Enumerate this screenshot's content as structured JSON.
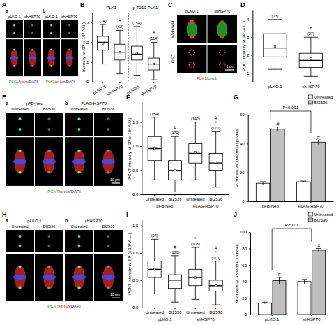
{
  "images": [
    {
      "panel": "A",
      "subpanels": [
        {
          "label": "a",
          "columns": [
            "pLKO.1",
            "shHSP70"
          ],
          "caption": [
            {
              "text": "PLK1",
              "color": "#1a9e1a"
            },
            {
              "text": "/",
              "color": "#000000"
            },
            {
              "text": "γ-tub",
              "color": "#d91a1a"
            },
            {
              "text": "/",
              "color": "#000000"
            },
            {
              "text": "DAPI",
              "color": "#1a2fd9"
            }
          ]
        },
        {
          "label": "b",
          "columns": [
            "pLKO.1",
            "shHSP70"
          ],
          "caption": [
            {
              "text": "PLK1",
              "color": "#1a9e1a"
            },
            {
              "text": "/",
              "color": "#000000"
            },
            {
              "text": "α-tub",
              "color": "#d91a1a"
            },
            {
              "text": "/",
              "color": "#000000"
            },
            {
              "text": "DAPI",
              "color": "#1a2fd9"
            }
          ]
        }
      ]
    },
    {
      "panel": "C",
      "columns": [
        "pLKO.1",
        "shHSP70"
      ],
      "rows": [
        "Wide-field",
        "GSD"
      ],
      "caption": [
        {
          "text": "PLK1",
          "color": "#d91a1a"
        },
        {
          "text": "/",
          "color": "#000000"
        },
        {
          "text": "α-tub",
          "color": "#1a9e1a"
        }
      ],
      "scale_bar": "1 μm"
    },
    {
      "panel": "E",
      "subpanels": [
        {
          "label": "a",
          "title": "pFB-Neo",
          "columns": [
            "Untreated",
            "BI2536"
          ]
        },
        {
          "label": "b",
          "title": "FLAG-HSP70",
          "columns": [
            "Untreated",
            "BI2536"
          ]
        }
      ],
      "caption": [
        {
          "text": "PCNT",
          "color": "#1a9e1a"
        },
        {
          "text": "/",
          "color": "#000000"
        },
        {
          "text": "α-tub",
          "color": "#d91a1a"
        },
        {
          "text": "/",
          "color": "#000000"
        },
        {
          "text": "DAPI",
          "color": "#1a2fd9"
        }
      ],
      "scale_bar": "10 μm"
    },
    {
      "panel": "H",
      "subpanels": [
        {
          "label": "a",
          "title": "pLKO.1",
          "columns": [
            "Untreated",
            "BI2536"
          ]
        },
        {
          "label": "b",
          "title": "shHSP70",
          "columns": [
            "Untreated",
            "BI2536"
          ]
        }
      ],
      "caption": [
        {
          "text": "PCNT",
          "color": "#1a9e1a"
        },
        {
          "text": "/",
          "color": "#000000"
        },
        {
          "text": "α-tub",
          "color": "#d91a1a"
        },
        {
          "text": "/",
          "color": "#000000"
        },
        {
          "text": "DAPI",
          "color": "#1a2fd9"
        }
      ],
      "scale_bar": "10 μm"
    }
  ],
  "chart_data": [
    {
      "type": "box",
      "panel": "B",
      "y_label": "Intensity at SP (x 10⁴ A.U.)",
      "ylim": [
        0,
        3.5
      ],
      "yticks": [
        0,
        1,
        2,
        3
      ],
      "groups": [
        {
          "title": "PLK1",
          "boxes": [
            {
              "category": "pLKO.1",
              "low": 0.9,
              "q1": 1.6,
              "median": 2.0,
              "q3": 2.3,
              "high": 2.9,
              "mean": 1.95,
              "n_label": "(74)"
            },
            {
              "category": "shHSP70",
              "low": 0.4,
              "q1": 1.1,
              "median": 1.5,
              "q3": 1.9,
              "high": 2.6,
              "mean": 1.5,
              "n_label": "(62)",
              "marks": [
                "*"
              ]
            }
          ]
        },
        {
          "title": "p-T210-PLK1",
          "boxes": [
            {
              "category": "pLKO.1",
              "low": 0.3,
              "q1": 1.1,
              "median": 1.4,
              "q3": 1.8,
              "high": 2.8,
              "mean": 1.45,
              "n_label": "(154)"
            },
            {
              "category": "shHSP70",
              "low": 0.1,
              "q1": 0.6,
              "median": 0.9,
              "q3": 1.2,
              "high": 2.0,
              "mean": 0.9,
              "n_label": "(114)",
              "marks": [
                "*"
              ]
            }
          ]
        }
      ]
    },
    {
      "type": "box",
      "panel": "D",
      "y_label": "PLK1 intensity at SP (A.U.)",
      "ylim": [
        0.5,
        4.5
      ],
      "yticks": [
        1,
        2,
        3,
        4
      ],
      "groups": [
        {
          "boxes": [
            {
              "category": "pLKO.1",
              "low": 1.2,
              "q1": 1.9,
              "median": 2.4,
              "q3": 3.2,
              "high": 4.0,
              "mean": 2.5,
              "n_label": "(23)"
            },
            {
              "category": "shHSP70",
              "low": 0.8,
              "q1": 1.3,
              "median": 1.7,
              "q3": 2.1,
              "high": 3.0,
              "mean": 1.8,
              "n_label": "(27)",
              "marks": [
                "*"
              ]
            }
          ]
        }
      ]
    },
    {
      "type": "box",
      "panel": "F",
      "y_label": "PCNT intensity at SP (x 10⁴ A.U.)",
      "ylim": [
        0,
        1.9
      ],
      "yticks": [
        {
          "value": 0,
          "label": "0.0"
        },
        0.5,
        {
          "value": 1,
          "label": "1.0"
        },
        1.5
      ],
      "groups": [
        {
          "label": "pFB-Neo",
          "boxes": [
            {
              "category": "Untreated",
              "low": 0.3,
              "q1": 0.7,
              "median": 0.95,
              "q3": 1.2,
              "high": 1.6,
              "mean": 0.95,
              "n_label": "(154)"
            },
            {
              "category": "BI2536",
              "low": 0.05,
              "q1": 0.3,
              "median": 0.5,
              "q3": 0.7,
              "high": 1.2,
              "mean": 0.5,
              "n_label": "(170)",
              "marks": [
                "#"
              ]
            }
          ]
        },
        {
          "label": "FLAG-HSP70",
          "boxes": [
            {
              "category": "Untreated",
              "low": 0.3,
              "q1": 0.65,
              "median": 0.85,
              "q3": 1.05,
              "high": 1.5,
              "mean": 0.87,
              "n_label": "(142)"
            },
            {
              "category": "BI2536",
              "low": 0.15,
              "q1": 0.5,
              "median": 0.65,
              "q3": 0.85,
              "high": 1.3,
              "mean": 0.67,
              "n_label": "(170)",
              "marks": [
                "#",
                "*"
              ]
            }
          ]
        }
      ]
    },
    {
      "type": "bar",
      "panel": "G",
      "y_label": "% of cells w/ abnormal spindles",
      "ylim": [
        0,
        60
      ],
      "yticks": [
        0,
        20,
        40,
        60
      ],
      "categories": [
        "pFB-Neo",
        "FLAG-HSP70"
      ],
      "series": [
        {
          "name": "Untreated",
          "color": "#ffffff",
          "values": [
            12.5,
            13.5
          ],
          "errors": [
            1,
            0.5
          ]
        },
        {
          "name": "BI2536",
          "color": "#bfbfbf",
          "values": [
            50,
            41
          ],
          "errors": [
            1.5,
            1.5
          ],
          "marks": [
            "#",
            "#"
          ]
        }
      ],
      "legend": "top-right",
      "annotations": [
        {
          "text": "P<0.001"
        }
      ]
    },
    {
      "type": "box",
      "panel": "I",
      "y_label": "PCNT intensity at SP (x 10⁴ A.U.)",
      "ylim": [
        0,
        1.6
      ],
      "yticks": [
        {
          "value": 0,
          "label": "0.0"
        },
        0.5,
        {
          "value": 1,
          "label": "1.0"
        },
        1.5
      ],
      "groups": [
        {
          "label": "pLKO.1",
          "boxes": [
            {
              "category": "Untreated",
              "low": 0.25,
              "q1": 0.55,
              "median": 0.7,
              "q3": 0.85,
              "high": 1.25,
              "mean": 0.7,
              "n_label": "(94)"
            },
            {
              "category": "BI2536",
              "low": 0.1,
              "q1": 0.35,
              "median": 0.5,
              "q3": 0.6,
              "high": 0.95,
              "mean": 0.48,
              "n_label": "(126)",
              "marks": [
                "#"
              ]
            }
          ]
        },
        {
          "label": "shHSP70",
          "boxes": [
            {
              "category": "Untreated",
              "low": 0.15,
              "q1": 0.4,
              "median": 0.55,
              "q3": 0.7,
              "high": 1.1,
              "mean": 0.55,
              "n_label": "(108)",
              "marks": [
                "*"
              ]
            },
            {
              "category": "BI2536",
              "low": 0.05,
              "q1": 0.3,
              "median": 0.4,
              "q3": 0.5,
              "high": 0.85,
              "mean": 0.4,
              "n_label": "(110)",
              "marks": [
                "#",
                "*"
              ]
            }
          ]
        }
      ]
    },
    {
      "type": "bar",
      "panel": "J",
      "y_label": "% of cells w/ abnormal spindles",
      "ylim": [
        0,
        100
      ],
      "yticks": [
        0,
        20,
        40,
        60,
        80,
        100
      ],
      "categories": [
        "pLKO.1",
        "shHSP70"
      ],
      "series": [
        {
          "name": "Untreated",
          "color": "#ffffff",
          "values": [
            14,
            40
          ],
          "errors": [
            1,
            2.5
          ]
        },
        {
          "name": "BI2536",
          "color": "#bfbfbf",
          "values": [
            41,
            78
          ],
          "errors": [
            4,
            2
          ],
          "marks": [
            "#",
            "#"
          ]
        }
      ],
      "legend": "top-right",
      "annotations": [
        {
          "text": "P<0.01"
        }
      ]
    }
  ]
}
